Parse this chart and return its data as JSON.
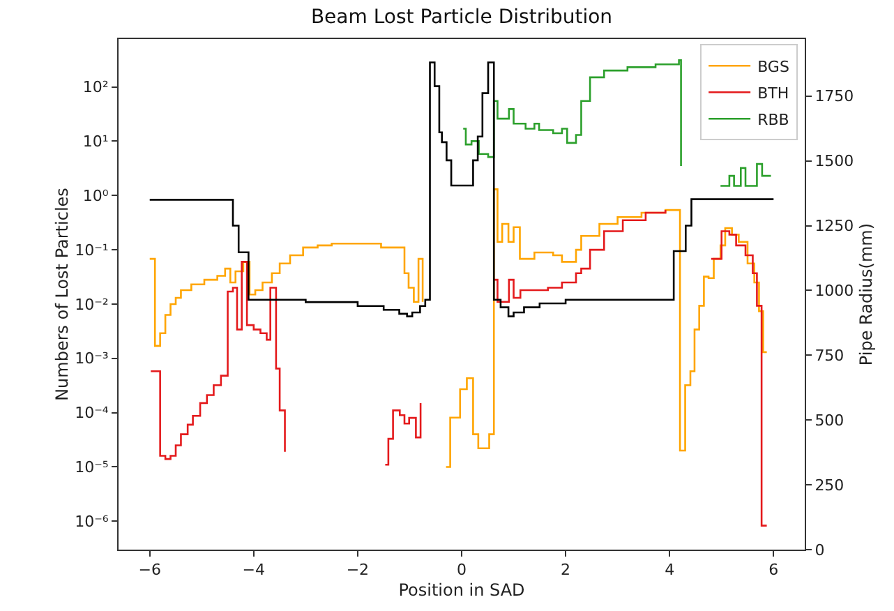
{
  "chart_data": {
    "type": "step",
    "title": "Beam Lost Particle Distribution",
    "xlabel": "Position in SAD",
    "ylabel": "Numbers of Lost Particles",
    "y2label": "Pipe Radius(mm)",
    "log": "y",
    "grid": false,
    "legend": "top right",
    "line_style": "solid",
    "marker": "none",
    "xlim": [
      -6.6,
      6.6
    ],
    "xticks": [
      {
        "value": -6,
        "label": "−6"
      },
      {
        "value": -4,
        "label": "−4"
      },
      {
        "value": -2,
        "label": "−2"
      },
      0,
      2,
      4,
      6
    ],
    "ylim": [
      3e-07,
      760
    ],
    "yticks": [
      {
        "value": 1e-06,
        "label": "10⁻⁶"
      },
      {
        "value": 1e-05,
        "label": "10⁻⁵"
      },
      {
        "value": 0.0001,
        "label": "10⁻⁴"
      },
      {
        "value": 0.001,
        "label": "10⁻³"
      },
      {
        "value": 0.01,
        "label": "10⁻²"
      },
      {
        "value": 0.1,
        "label": "10⁻¹"
      },
      {
        "value": 1,
        "label": "10⁰"
      },
      {
        "value": 10,
        "label": "10¹"
      },
      {
        "value": 100,
        "label": "10²"
      }
    ],
    "y2lim": [
      0,
      1970
    ],
    "y2ticks": [
      0,
      250,
      500,
      750,
      1000,
      1250,
      1500,
      1750
    ],
    "series": [
      {
        "name": "BGS",
        "color": "#ffa500",
        "x": [
          -6.0,
          -5.9,
          -5.8,
          -5.7,
          -5.6,
          -5.5,
          -5.4,
          -5.2,
          -4.95,
          -4.7,
          -4.55,
          -4.45,
          -4.35,
          -4.2,
          -4.08,
          -3.97,
          -3.83,
          -3.65,
          -3.5,
          -3.3,
          -3.05,
          -2.77,
          -2.5,
          -1.55,
          -1.1,
          -1.02,
          -0.92,
          -0.83,
          -0.75,
          -0.67,
          -0.3,
          -0.22,
          -0.03,
          0.1,
          0.22,
          0.32,
          0.53,
          0.62,
          0.69,
          0.78,
          0.9,
          1.0,
          1.12,
          1.4,
          1.76,
          1.93,
          2.2,
          2.3,
          2.39,
          2.65,
          3.0,
          3.46,
          3.92,
          4.2,
          4.3,
          4.4,
          4.48,
          4.57,
          4.66,
          4.75,
          4.85,
          4.98,
          5.07,
          5.2,
          5.33,
          5.5,
          5.63,
          5.72,
          5.8,
          5.87
        ],
        "values": [
          0.068,
          0.0017,
          0.0029,
          0.0063,
          0.01,
          0.013,
          0.018,
          0.023,
          0.028,
          0.033,
          0.045,
          0.025,
          0.04,
          0.06,
          0.015,
          0.018,
          0.025,
          0.037,
          0.056,
          0.079,
          0.11,
          0.12,
          0.13,
          0.11,
          0.037,
          0.02,
          0.011,
          0.068,
          0.011,
          null,
          1e-05,
          8.1e-05,
          0.00027,
          0.00043,
          4e-05,
          2.2e-05,
          4e-05,
          1.3,
          0.14,
          0.3,
          0.14,
          0.26,
          0.068,
          0.089,
          0.079,
          0.06,
          0.1,
          0.18,
          0.18,
          0.3,
          0.4,
          0.48,
          0.54,
          2e-05,
          0.00032,
          0.00058,
          0.0034,
          0.0093,
          0.032,
          0.03,
          0.068,
          0.12,
          0.25,
          0.19,
          0.14,
          0.056,
          0.025,
          0.0074,
          0.0013,
          0.0013
        ]
      },
      {
        "name": "BTH",
        "color": "#e41a1c",
        "x": [
          -5.98,
          -5.8,
          -5.7,
          -5.6,
          -5.5,
          -5.4,
          -5.27,
          -5.17,
          -5.03,
          -4.9,
          -4.77,
          -4.63,
          -4.5,
          -4.4,
          -4.32,
          -4.23,
          -4.13,
          -4.0,
          -3.87,
          -3.75,
          -3.68,
          -3.57,
          -3.5,
          -3.4,
          -3.3,
          -1.47,
          -1.41,
          -1.32,
          -1.19,
          -1.1,
          -1.01,
          -0.88,
          -0.79,
          -0.7,
          0.62,
          0.69,
          0.78,
          0.91,
          1.0,
          1.13,
          1.4,
          1.66,
          1.93,
          2.2,
          2.3,
          2.47,
          2.74,
          3.1,
          3.54,
          3.92,
          4.2,
          4.8,
          5.0,
          5.15,
          5.28,
          5.46,
          5.6,
          5.68,
          5.77,
          5.87
        ],
        "values": [
          0.00058,
          1.6e-05,
          1.4e-05,
          1.6e-05,
          2.5e-05,
          4e-05,
          6e-05,
          8.7e-05,
          0.00015,
          0.00021,
          0.00032,
          0.00048,
          0.017,
          0.02,
          0.0034,
          0.06,
          0.0041,
          0.0034,
          0.0029,
          0.0022,
          0.02,
          0.00065,
          0.00011,
          1.9e-05,
          null,
          1.1e-05,
          3.3e-05,
          0.00011,
          9e-05,
          6.3e-05,
          8e-05,
          3.5e-05,
          0.00015,
          null,
          0.028,
          0.011,
          0.011,
          0.028,
          0.013,
          0.018,
          0.018,
          0.02,
          0.025,
          0.037,
          0.045,
          0.1,
          0.22,
          0.35,
          0.48,
          0.54,
          null,
          0.068,
          0.22,
          0.19,
          0.12,
          0.079,
          0.037,
          0.0093,
          8.3e-07,
          8.3e-07
        ]
      },
      {
        "name": "RBB",
        "color": "#2ca02c",
        "x": [
          0.03,
          0.08,
          0.19,
          0.33,
          0.51,
          0.62,
          0.69,
          0.91,
          1.0,
          1.23,
          1.4,
          1.49,
          1.76,
          1.93,
          2.03,
          2.2,
          2.3,
          2.47,
          2.74,
          3.19,
          3.73,
          4.18,
          4.22,
          4.31,
          4.98,
          5.15,
          5.24,
          5.37,
          5.46,
          5.68,
          5.78,
          5.95
        ],
        "values": [
          17,
          8.7,
          10,
          5.8,
          5.1,
          55,
          26,
          39,
          21,
          17,
          21,
          16,
          14,
          17,
          9.3,
          13,
          55,
          150,
          200,
          230,
          260,
          310,
          3.5,
          null,
          1.5,
          2.3,
          1.5,
          3.2,
          1.5,
          3.8,
          2.3,
          2.3
        ]
      },
      {
        "color": "#000000",
        "axis": "y2",
        "x": [
          -6.0,
          -4.4,
          -4.29,
          -4.1,
          -3.0,
          -2.0,
          -1.5,
          -1.2,
          -1.05,
          -0.95,
          -0.8,
          -0.7,
          -0.61,
          -0.52,
          -0.43,
          -0.38,
          -0.29,
          -0.2,
          0.22,
          0.31,
          0.4,
          0.51,
          0.62,
          0.75,
          0.9,
          1.0,
          1.2,
          1.5,
          2.0,
          4.08,
          4.31,
          4.42,
          6.0
        ],
        "values": [
          1350,
          1250,
          1147,
          964,
          955,
          940,
          925,
          910,
          900,
          915,
          940,
          964,
          1880,
          1788,
          1610,
          1572,
          1502,
          1405,
          1502,
          1594,
          1761,
          1880,
          964,
          935,
          900,
          915,
          935,
          950,
          964,
          1152,
          1250,
          1352,
          1352
        ]
      }
    ]
  }
}
